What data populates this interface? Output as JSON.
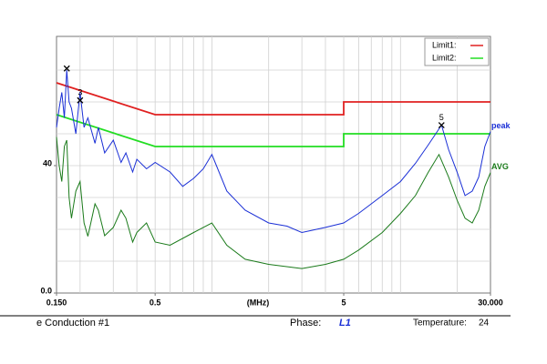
{
  "chart_data": {
    "type": "line",
    "xscale": "log",
    "xlim": [
      0.15,
      30
    ],
    "ylim": [
      0,
      80
    ],
    "xticks": [
      {
        "value": 0.15,
        "label": "0.150"
      },
      0.5,
      5,
      {
        "value": 30,
        "label": "30.000"
      }
    ],
    "yticks": [
      {
        "value": 0,
        "label": "0.0"
      },
      40
    ],
    "xgrid": [
      0.2,
      0.3,
      0.4,
      0.5,
      0.6,
      0.7,
      0.8,
      0.9,
      1,
      2,
      3,
      4,
      5,
      6,
      7,
      8,
      9,
      10,
      20
    ],
    "ygrid": [
      10,
      20,
      30,
      40,
      50,
      60,
      70
    ],
    "x_label": "(MHz)",
    "series": [
      {
        "name": "Limit1:",
        "legend": "box",
        "color": "#e02020",
        "x": [
          0.15,
          0.5,
          5,
          5,
          30
        ],
        "values": [
          66,
          56,
          56,
          60,
          60
        ]
      },
      {
        "name": "Limit2:",
        "legend": "box",
        "color": "#22dd22",
        "x": [
          0.15,
          0.5,
          5,
          5,
          30
        ],
        "values": [
          56,
          46,
          46,
          50,
          50
        ]
      },
      {
        "name": "peak",
        "legend": "end",
        "color": "#1a2fd6",
        "x": [
          0.15,
          0.155,
          0.16,
          0.165,
          0.17,
          0.175,
          0.18,
          0.19,
          0.2,
          0.21,
          0.22,
          0.24,
          0.25,
          0.27,
          0.3,
          0.33,
          0.35,
          0.38,
          0.4,
          0.45,
          0.5,
          0.6,
          0.7,
          0.8,
          0.9,
          1.0,
          1.2,
          1.5,
          2,
          2.5,
          3,
          4,
          5,
          6,
          8,
          10,
          12,
          14,
          16.5,
          18,
          20,
          22,
          24,
          26,
          28,
          30
        ],
        "values": [
          52,
          58,
          63,
          55,
          70,
          60,
          58,
          50,
          63,
          52,
          55,
          47,
          52,
          44,
          48,
          41,
          44,
          38,
          42,
          39,
          41,
          38,
          33.5,
          36,
          39,
          43.5,
          32,
          26,
          22,
          21,
          19,
          20.6,
          22,
          25,
          30.6,
          35,
          40.7,
          46.4,
          52.7,
          45,
          37.8,
          30.6,
          32,
          36.4,
          46,
          50.7
        ]
      },
      {
        "name": "AVG",
        "legend": "end",
        "color": "#1a7a1a",
        "x": [
          0.15,
          0.155,
          0.16,
          0.165,
          0.17,
          0.175,
          0.18,
          0.19,
          0.2,
          0.21,
          0.22,
          0.24,
          0.25,
          0.27,
          0.3,
          0.33,
          0.35,
          0.38,
          0.4,
          0.45,
          0.5,
          0.6,
          0.8,
          1.0,
          1.2,
          1.5,
          2,
          3,
          4,
          5,
          6,
          8,
          10,
          12,
          14,
          16,
          18,
          20,
          22,
          24,
          26,
          28,
          30
        ],
        "values": [
          49,
          40,
          35,
          46,
          48,
          30,
          23.5,
          32,
          35,
          22,
          17.8,
          28,
          26,
          18,
          20.6,
          26,
          23.5,
          16,
          19,
          22,
          16,
          15,
          19,
          22,
          15,
          10.6,
          9,
          7.7,
          9,
          10.6,
          13.5,
          19,
          25,
          30.6,
          37.8,
          43.5,
          36.4,
          29,
          23.5,
          22,
          26,
          33.5,
          37.8
        ]
      }
    ],
    "markers": [
      {
        "label": null,
        "x": 0.17,
        "y": 70.5
      },
      {
        "label": "3",
        "x": 0.2,
        "y": 60.5
      },
      {
        "label": "5",
        "x": 16.5,
        "y": 52.7
      }
    ]
  },
  "footer": {
    "test": "e Conduction #1",
    "phase_label": "Phase:",
    "phase": "L1",
    "temperature_label": "Temperature:",
    "temperature": "24"
  }
}
